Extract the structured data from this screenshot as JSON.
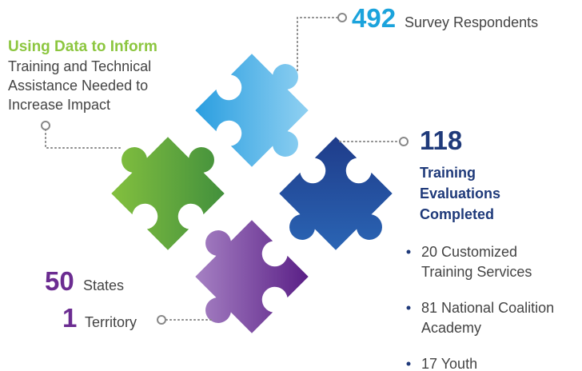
{
  "heading": {
    "title": "Using Data to Inform",
    "body": [
      "Training and Technical",
      "Assistance Needed to",
      "Increase Impact"
    ]
  },
  "survey": {
    "number": 492,
    "label": "Survey Respondents"
  },
  "evaluations": {
    "number": 118,
    "label": [
      "Training",
      "Evaluations",
      "Completed"
    ],
    "items": [
      [
        "20 Customized",
        "Training Services"
      ],
      [
        "81 National Coalition",
        "Academy"
      ],
      [
        "17 Youth"
      ]
    ]
  },
  "states": {
    "number": 50,
    "label": "States"
  },
  "territory": {
    "number": 1,
    "label": "Territory"
  }
}
